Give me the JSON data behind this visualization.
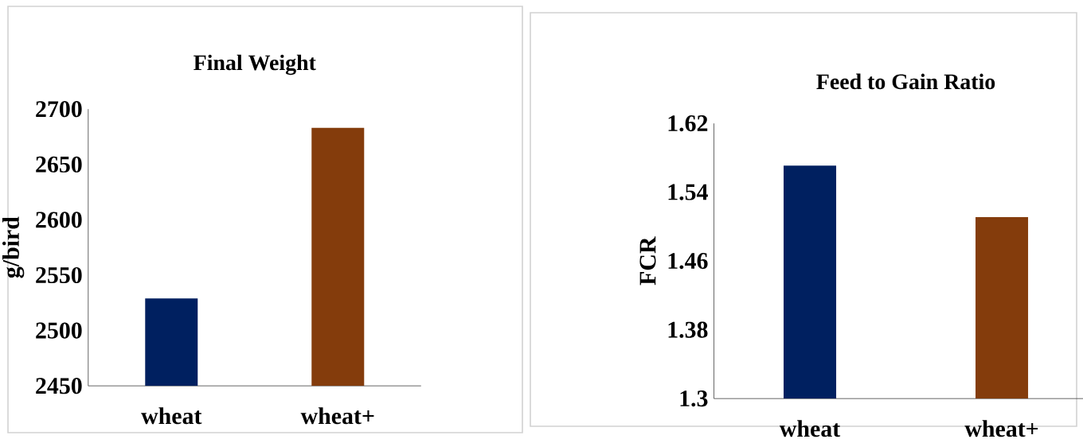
{
  "chart_data": [
    {
      "type": "bar",
      "title": "Final Weight",
      "ylabel": "g/bird",
      "categories": [
        "wheat",
        "wheat+"
      ],
      "values": [
        2529,
        2683
      ],
      "colors": [
        "#002060",
        "#843c0c"
      ],
      "ylim": [
        2450,
        2700
      ],
      "yticks": [
        2450,
        2500,
        2550,
        2600,
        2650,
        2700
      ]
    },
    {
      "type": "bar",
      "title": "Feed to Gain Ratio",
      "ylabel": "FCR",
      "categories": [
        "wheat",
        "wheat+"
      ],
      "values": [
        1.571,
        1.511
      ],
      "colors": [
        "#002060",
        "#843c0c"
      ],
      "ylim": [
        1.3,
        1.62
      ],
      "yticks": [
        1.3,
        1.38,
        1.46,
        1.54,
        1.62
      ]
    }
  ]
}
